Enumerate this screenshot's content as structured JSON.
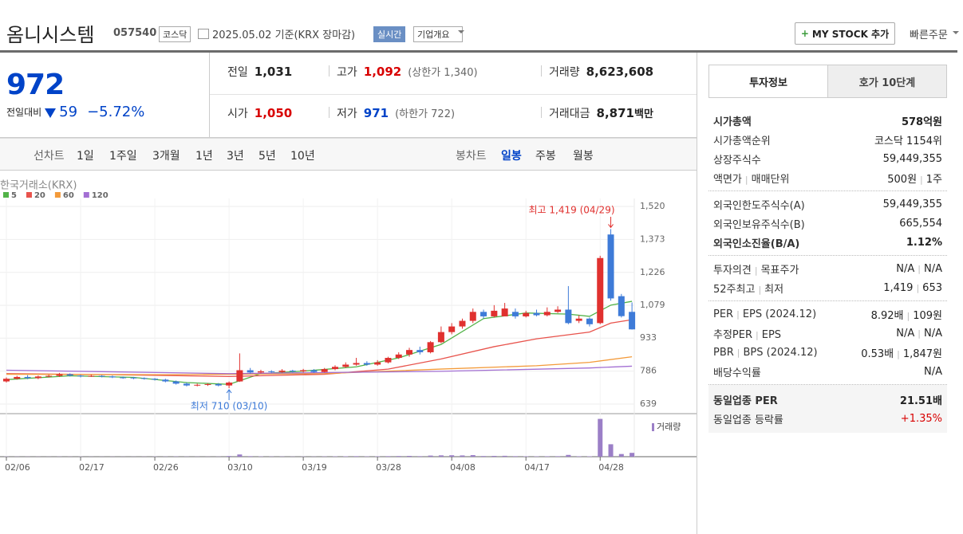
{
  "header": {
    "title": "옴니시스템",
    "code": "057540",
    "market": "코스닥",
    "date": "2025.05.02 기준(KRX 장마감)",
    "realtime": "실시간",
    "overview": "기업개요",
    "my_stock": "MY STOCK 추가",
    "quick_order": "빠른주문"
  },
  "price": {
    "current": "972",
    "change_label": "전일대비",
    "change": "59",
    "change_rate": "−5.72%",
    "cells": [
      {
        "label": "전일",
        "value": "1,031",
        "color": "#222"
      },
      {
        "label": "고가",
        "value": "1,092",
        "color": "#d80000",
        "sub": "(상한가 1,340)"
      },
      {
        "label": "거래량",
        "value": "8,623,608",
        "color": "#222"
      },
      {
        "label": "시가",
        "value": "1,050",
        "color": "#d80000"
      },
      {
        "label": "저가",
        "value": "971",
        "color": "#0043c8",
        "sub": "(하한가 722)"
      },
      {
        "label": "거래대금",
        "value": "8,871",
        "color": "#222",
        "unit": "백만"
      }
    ]
  },
  "tabs": {
    "line": "선차트",
    "periods": [
      "1일",
      "1주일",
      "3개월",
      "1년",
      "3년",
      "5년",
      "10년"
    ],
    "candle": "봉차트",
    "candle_periods": [
      "일봉",
      "주봉",
      "월봉"
    ]
  },
  "chart_data": {
    "type": "candlestick",
    "source": "한국거래소(KRX)",
    "categories": [
      "02/06",
      null,
      null,
      null,
      null,
      null,
      null,
      "02/17",
      null,
      null,
      null,
      null,
      null,
      null,
      "02/26",
      null,
      null,
      null,
      null,
      null,
      null,
      "03/10",
      null,
      null,
      null,
      null,
      null,
      null,
      "03/19",
      null,
      null,
      null,
      null,
      null,
      null,
      "03/28",
      null,
      null,
      null,
      null,
      null,
      null,
      "04/08",
      null,
      null,
      null,
      null,
      null,
      null,
      "04/17",
      null,
      null,
      null,
      null,
      null,
      null,
      "04/28",
      null,
      null,
      null
    ],
    "open": [
      740,
      752,
      760,
      755,
      762,
      765,
      772,
      766,
      763,
      765,
      762,
      758,
      757,
      755,
      752,
      748,
      740,
      730,
      722,
      725,
      728,
      722,
      740,
      790,
      780,
      785,
      782,
      788,
      785,
      790,
      782,
      795,
      805,
      815,
      822,
      815,
      825,
      845,
      860,
      880,
      870,
      915,
      960,
      985,
      1010,
      1050,
      1030,
      1030,
      1050,
      1030,
      1045,
      1035,
      1050,
      1060,
      1010,
      1020,
      1000,
      1395,
      1120,
      1050
    ],
    "high": [
      758,
      765,
      768,
      766,
      770,
      778,
      776,
      770,
      770,
      768,
      766,
      762,
      760,
      758,
      755,
      752,
      744,
      735,
      730,
      732,
      733,
      740,
      865,
      800,
      792,
      790,
      795,
      792,
      796,
      795,
      800,
      812,
      825,
      845,
      830,
      835,
      850,
      870,
      890,
      895,
      920,
      985,
      1000,
      1020,
      1065,
      1060,
      1080,
      1090,
      1065,
      1055,
      1060,
      1070,
      1075,
      1165,
      1035,
      1025,
      1300,
      1419,
      1130,
      1092
    ],
    "low": [
      735,
      748,
      750,
      750,
      758,
      760,
      762,
      758,
      760,
      758,
      755,
      752,
      750,
      748,
      744,
      736,
      726,
      718,
      718,
      720,
      718,
      710,
      738,
      775,
      776,
      778,
      778,
      780,
      780,
      778,
      780,
      790,
      800,
      810,
      810,
      810,
      820,
      840,
      850,
      860,
      865,
      910,
      950,
      975,
      1000,
      1020,
      1025,
      1030,
      1020,
      1025,
      1030,
      1030,
      1045,
      995,
      1000,
      985,
      995,
      1100,
      1025,
      971
    ],
    "close": [
      752,
      760,
      755,
      762,
      765,
      772,
      766,
      763,
      765,
      762,
      758,
      757,
      755,
      752,
      748,
      740,
      730,
      722,
      725,
      728,
      722,
      735,
      790,
      780,
      785,
      782,
      788,
      785,
      790,
      782,
      795,
      805,
      815,
      822,
      815,
      825,
      845,
      860,
      880,
      870,
      915,
      960,
      985,
      1010,
      1050,
      1030,
      1055,
      1065,
      1030,
      1045,
      1035,
      1050,
      1060,
      1000,
      1020,
      995,
      1290,
      1110,
      1031,
      972
    ],
    "up_color": "#e0312f",
    "down_color": "#3e7bd8",
    "ylim": [
      639,
      1520
    ],
    "yticks": [
      {
        "value": 639,
        "label": "639"
      },
      {
        "value": 786,
        "label": "786"
      },
      {
        "value": 933,
        "label": "933"
      },
      {
        "value": 1079,
        "label": "1,079"
      },
      {
        "value": 1226,
        "label": "1,226"
      },
      {
        "value": 1373,
        "label": "1,373"
      },
      {
        "value": 1520,
        "label": "1,520"
      }
    ],
    "grid": true,
    "ma": [
      {
        "name": "5",
        "color": "#52b348",
        "x": [
          0,
          6,
          12,
          17,
          21,
          24,
          28,
          33,
          37,
          41,
          45,
          49,
          53,
          55,
          57,
          59
        ],
        "values": [
          748,
          765,
          758,
          735,
          727,
          775,
          786,
          805,
          845,
          905,
          1020,
          1045,
          1040,
          1030,
          1080,
          1097
        ]
      },
      {
        "name": "20",
        "color": "#e8534c",
        "x": [
          0,
          10,
          21,
          30,
          36,
          41,
          46,
          50,
          55,
          57,
          59
        ],
        "values": [
          775,
          770,
          762,
          772,
          795,
          840,
          895,
          930,
          960,
          1000,
          1015
        ]
      },
      {
        "name": "60",
        "color": "#f39a3a",
        "x": [
          0,
          15,
          30,
          41,
          50,
          55,
          59
        ],
        "values": [
          772,
          770,
          775,
          795,
          810,
          825,
          850
        ]
      },
      {
        "name": "120",
        "color": "#a36fd3",
        "x": [
          0,
          21,
          41,
          55,
          59
        ],
        "values": [
          790,
          775,
          785,
          800,
          808
        ]
      }
    ],
    "volume_label": "거래량",
    "volume_color": "#9b7fc7",
    "volume_lim": [
      0,
      95000000
    ],
    "volume": [
      400000,
      350000,
      300000,
      300000,
      250000,
      400000,
      300000,
      300000,
      250000,
      250000,
      300000,
      250000,
      250000,
      300000,
      350000,
      400000,
      500000,
      400000,
      350000,
      300000,
      400000,
      1500000,
      5000000,
      1200000,
      700000,
      500000,
      500000,
      400000,
      400000,
      400000,
      600000,
      700000,
      900000,
      1200000,
      700000,
      800000,
      1200000,
      1500000,
      1800000,
      1200000,
      2500000,
      3000000,
      3200000,
      2800000,
      3500000,
      1500000,
      1800000,
      2000000,
      1200000,
      900000,
      800000,
      1000000,
      1100000,
      4000000,
      1000000,
      900000,
      85000000,
      28000000,
      6000000,
      8623608
    ],
    "annotations": {
      "high": "최고 1,419 (04/29)",
      "low": "최저 710 (03/10)"
    }
  },
  "sidebar": {
    "tabs": [
      "투자정보",
      "호가 10단계"
    ],
    "groups": [
      [
        {
          "label": "시가총액",
          "value": "578억원",
          "bold": true
        },
        {
          "label": "시가총액순위",
          "value": "코스닥 1154위"
        },
        {
          "label": "상장주식수",
          "value": "59,449,355"
        },
        {
          "label": [
            "액면가",
            "매매단위"
          ],
          "value": [
            "500원",
            "1주"
          ]
        }
      ],
      [
        {
          "label": "외국인한도주식수(A)",
          "value": "59,449,355"
        },
        {
          "label": "외국인보유주식수(B)",
          "value": "665,554"
        },
        {
          "label": "외국인소진율(B/A)",
          "value": "1.12%",
          "bold": true
        }
      ],
      [
        {
          "label": [
            "투자의견",
            "목표주가"
          ],
          "value": [
            "N/A",
            "N/A"
          ]
        },
        {
          "label": [
            "52주최고",
            "최저"
          ],
          "value": [
            "1,419",
            "653"
          ]
        }
      ],
      [
        {
          "label": [
            "PER",
            "EPS (2024.12)"
          ],
          "value": [
            "8.92배",
            "109원"
          ]
        },
        {
          "label": [
            "추정PER",
            "EPS"
          ],
          "value": [
            "N/A",
            "N/A"
          ]
        },
        {
          "label": [
            "PBR",
            "BPS (2024.12)"
          ],
          "value": [
            "0.53배",
            "1,847원"
          ]
        },
        {
          "label": "배당수익률",
          "value": "N/A"
        }
      ],
      [
        {
          "label": "동일업종 PER",
          "value": "21.51배",
          "bold": true
        },
        {
          "label": "동일업종 등락률",
          "value": "+1.35%",
          "color": "#d80000"
        }
      ]
    ]
  }
}
